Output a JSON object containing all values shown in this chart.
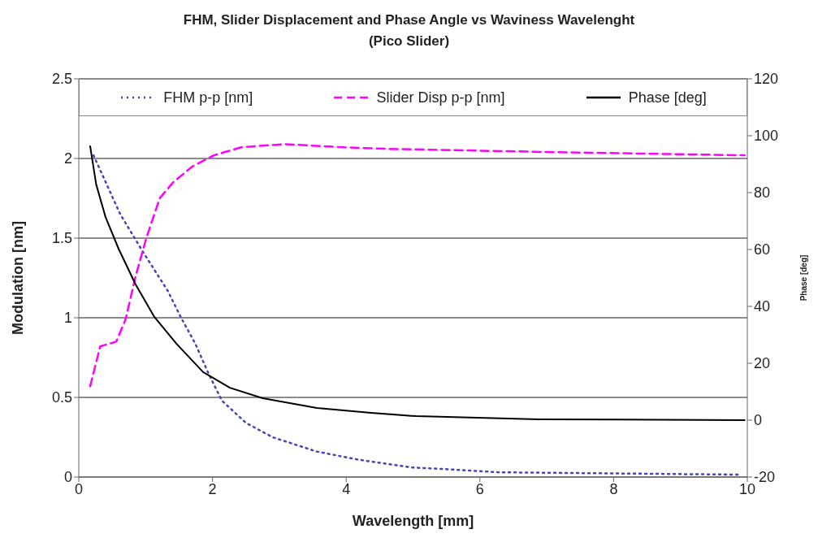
{
  "chart_data": {
    "type": "line",
    "title": "FHM, Slider Displacement and Phase Angle vs Waviness Wavelenght (Pico Slider)",
    "xlabel": "Wavelength [mm]",
    "ylabel": "Modulation [nm]",
    "y2label": "Phase [deg]",
    "xlim": [
      0,
      10
    ],
    "xticks": [
      0,
      2,
      4,
      6,
      8,
      10
    ],
    "ylim": [
      0,
      2.5
    ],
    "yticks": [
      0,
      0.5,
      1,
      1.5,
      2,
      2.5
    ],
    "y2lim": [
      -20,
      120
    ],
    "y2ticks": [
      -20,
      0,
      20,
      40,
      60,
      80,
      100,
      120
    ],
    "grid": "y",
    "legend": "top",
    "marker": "none",
    "series": [
      {
        "name": "FHM p-p [nm]",
        "color": "#4545b5",
        "line_style": "dotted",
        "x": [
          0.22,
          0.62,
          0.98,
          1.33,
          1.53,
          1.74,
          1.94,
          2.14,
          2.5,
          2.9,
          3.56,
          4.17,
          4.98,
          5.47,
          6.27,
          9.9
        ],
        "values": [
          2.02,
          1.65,
          1.4,
          1.17,
          1.0,
          0.84,
          0.65,
          0.48,
          0.34,
          0.25,
          0.16,
          0.11,
          0.06,
          0.05,
          0.03,
          0.015
        ]
      },
      {
        "name": "Slider Disp p-p [nm]",
        "color": "#ff00ff",
        "line_style": "dashed",
        "x": [
          0.17,
          0.32,
          0.56,
          0.7,
          0.85,
          1.01,
          1.21,
          1.41,
          1.7,
          2.02,
          2.43,
          3.07,
          3.96,
          4.65,
          7.08,
          9.96
        ],
        "values": [
          0.57,
          0.82,
          0.85,
          0.99,
          1.26,
          1.5,
          1.75,
          1.85,
          1.95,
          2.02,
          2.07,
          2.09,
          2.07,
          2.06,
          2.04,
          2.02
        ]
      },
      {
        "name": "Phase [deg]",
        "color": "#000000",
        "line_style": "solid",
        "axis": "y2",
        "x": [
          0.17,
          0.26,
          0.4,
          0.6,
          0.85,
          1.13,
          1.46,
          1.86,
          2.26,
          2.75,
          3.56,
          4.37,
          5.05,
          6.88,
          9.96
        ],
        "values": [
          96.3,
          82.9,
          71.4,
          60,
          47.7,
          36.3,
          26.9,
          16.9,
          11.4,
          7.7,
          4.3,
          2.6,
          1.4,
          0.3,
          0
        ]
      }
    ]
  }
}
